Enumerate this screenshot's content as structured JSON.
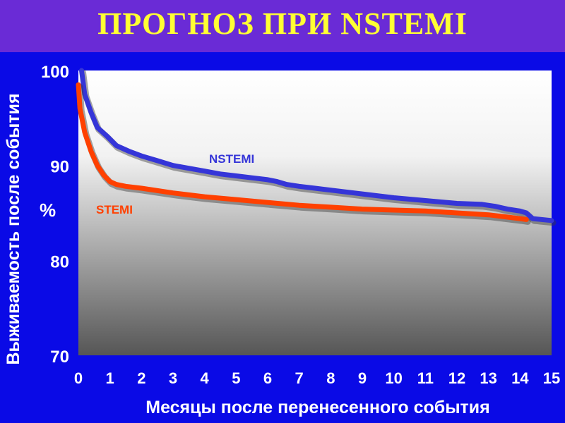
{
  "slide": {
    "title": "ПРОГНОЗ ПРИ NSTEMI"
  },
  "chart_data": {
    "type": "line",
    "title": "",
    "xlabel": "Месяцы после перенесенного события",
    "ylabel": "Выживаемость после события",
    "yunit": "%",
    "xlim": [
      0,
      15
    ],
    "ylim": [
      70,
      100
    ],
    "xticks": [
      "0",
      "1",
      "2",
      "3",
      "4",
      "5",
      "6",
      "7",
      "8",
      "9",
      "10",
      "11",
      "12",
      "13",
      "14",
      "15"
    ],
    "yticks": [
      "70",
      "80",
      "90",
      "100"
    ],
    "grid": false,
    "series": [
      {
        "name": "NSTEMI",
        "color": "#3535d8",
        "x": [
          0.1,
          0.2,
          0.4,
          0.6,
          0.9,
          1.2,
          1.6,
          2,
          2.5,
          3,
          3.5,
          4,
          4.5,
          5,
          5.5,
          6,
          6.3,
          6.6,
          7,
          7.5,
          8,
          9,
          10,
          11,
          12,
          12.8,
          13.2,
          13.6,
          14,
          14.2,
          14.4,
          15
        ],
        "y": [
          100,
          97.5,
          95.6,
          94.0,
          93.1,
          92.1,
          91.5,
          91.0,
          90.5,
          90.0,
          89.7,
          89.4,
          89.1,
          88.9,
          88.7,
          88.5,
          88.3,
          88.0,
          87.8,
          87.6,
          87.4,
          87.0,
          86.6,
          86.3,
          86.0,
          85.9,
          85.7,
          85.4,
          85.2,
          85.0,
          84.4,
          84.2
        ]
      },
      {
        "name": "STEMI",
        "color": "#ff4000",
        "x": [
          0,
          0.05,
          0.2,
          0.4,
          0.6,
          0.8,
          1.0,
          1.2,
          1.5,
          2,
          3,
          4,
          5,
          6,
          7,
          8,
          9,
          10,
          11,
          12,
          13,
          13.5,
          14,
          14.2
        ],
        "y": [
          98.5,
          96,
          93.5,
          91.5,
          90.0,
          89.0,
          88.3,
          88.0,
          87.8,
          87.6,
          87.1,
          86.7,
          86.4,
          86.1,
          85.8,
          85.6,
          85.4,
          85.3,
          85.2,
          85.0,
          84.8,
          84.6,
          84.4,
          84.3
        ]
      }
    ]
  }
}
